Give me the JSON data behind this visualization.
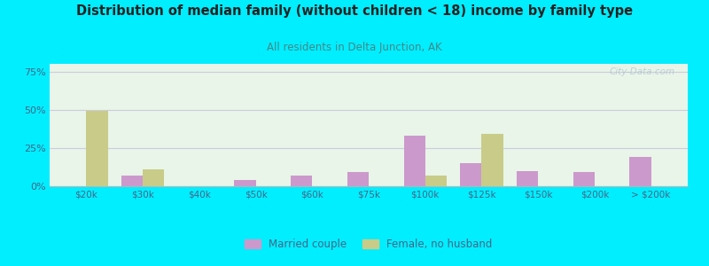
{
  "title": "Distribution of median family (without children < 18) income by family type",
  "subtitle": "All residents in Delta Junction, AK",
  "categories": [
    "$20k",
    "$30k",
    "$40k",
    "$50k",
    "$60k",
    "$75k",
    "$100k",
    "$125k",
    "$150k",
    "$200k",
    "> $200k"
  ],
  "married_couple": [
    0,
    7,
    0,
    4,
    7,
    9,
    33,
    15,
    10,
    9,
    19
  ],
  "female_no_husband": [
    49,
    11,
    0,
    0,
    0,
    0,
    7,
    34,
    0,
    0,
    0
  ],
  "married_color": "#cc99cc",
  "female_color": "#c8cc88",
  "background_color": "#00eeff",
  "plot_bg_color": "#e8f5e8",
  "title_color": "#222222",
  "subtitle_color": "#448888",
  "axis_label_color": "#446666",
  "tick_label_color": "#446688",
  "grid_color": "#ccccdd",
  "ylim": [
    0,
    80
  ],
  "yticks": [
    0,
    25,
    50,
    75
  ],
  "bar_width": 0.38,
  "watermark": "City-Data.com",
  "legend_married": "Married couple",
  "legend_female": "Female, no husband"
}
